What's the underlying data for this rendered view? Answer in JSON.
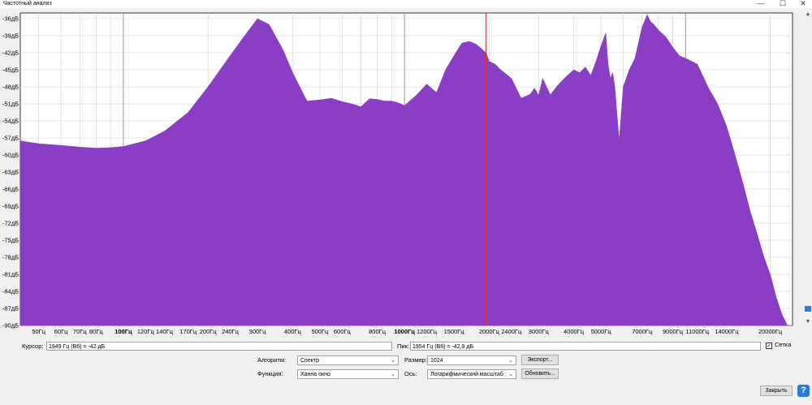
{
  "window": {
    "title": "Частотный анализ",
    "minimize": "—",
    "maximize": "☐",
    "close": "✕"
  },
  "plot": {
    "y_labels": [
      "-36дБ",
      "-39дБ",
      "-42дБ",
      "-45дБ",
      "-48дБ",
      "-51дБ",
      "-54дБ",
      "-57дБ",
      "-60дБ",
      "-63дБ",
      "-66дБ",
      "-69дБ",
      "-72дБ",
      "-75дБ",
      "-78дБ",
      "-81дБ",
      "-84дБ",
      "-87дБ",
      "-90дБ"
    ],
    "x_labels": [
      {
        "t": "50Гц",
        "b": false
      },
      {
        "t": "60Гц",
        "b": false
      },
      {
        "t": "70Гц",
        "b": false
      },
      {
        "t": "80Гц",
        "b": false
      },
      {
        "t": "100Гц",
        "b": true
      },
      {
        "t": "120Гц",
        "b": false
      },
      {
        "t": "140Гц",
        "b": false
      },
      {
        "t": "170Гц",
        "b": false
      },
      {
        "t": "200Гц",
        "b": false
      },
      {
        "t": "240Гц",
        "b": false
      },
      {
        "t": "300Гц",
        "b": false
      },
      {
        "t": "400Гц",
        "b": false
      },
      {
        "t": "500Гц",
        "b": false
      },
      {
        "t": "600Гц",
        "b": false
      },
      {
        "t": "800Гц",
        "b": false
      },
      {
        "t": "1000Гц",
        "b": true
      },
      {
        "t": "1200Гц",
        "b": false
      },
      {
        "t": "1500Гц",
        "b": false
      },
      {
        "t": "2000Гц",
        "b": false
      },
      {
        "t": "2400Гц",
        "b": false
      },
      {
        "t": "3000Гц",
        "b": false
      },
      {
        "t": "4000Гц",
        "b": false
      },
      {
        "t": "5000Гц",
        "b": false
      },
      {
        "t": "7000Гц",
        "b": false
      },
      {
        "t": "9000Гц",
        "b": false
      },
      {
        "t": "11000Гц",
        "b": false
      },
      {
        "t": "14000Гц",
        "b": false
      },
      {
        "t": "20000Гц",
        "b": false
      }
    ],
    "fill_color": "#8a3ec5",
    "cursor_color": "#d83a3a"
  },
  "chart_data": {
    "type": "area",
    "xlabel": "",
    "ylabel": "",
    "x_scale": "log",
    "xlim": [
      43,
      24000
    ],
    "ylim": [
      -90,
      -35
    ],
    "grid": true,
    "x": [
      43,
      50,
      60,
      70,
      80,
      90,
      100,
      120,
      140,
      170,
      200,
      240,
      270,
      300,
      330,
      370,
      400,
      450,
      500,
      550,
      600,
      650,
      700,
      750,
      800,
      850,
      900,
      950,
      1000,
      1100,
      1200,
      1300,
      1400,
      1500,
      1600,
      1700,
      1800,
      1900,
      1950,
      2000,
      2100,
      2200,
      2400,
      2600,
      2800,
      2900,
      3000,
      3100,
      3300,
      3500,
      3700,
      4000,
      4200,
      4400,
      4600,
      4800,
      5000,
      5200,
      5300,
      5400,
      5500,
      5600,
      5800,
      6000,
      6300,
      6600,
      7000,
      7300,
      7500,
      7700,
      8000,
      8500,
      9000,
      9500,
      10000,
      10500,
      11000,
      11500,
      12000,
      13000,
      14000,
      15000,
      16000,
      17000,
      18000,
      19000,
      20000,
      21000,
      22000,
      22500,
      23000,
      24000
    ],
    "y": [
      -57.5,
      -58,
      -58.3,
      -58.6,
      -58.8,
      -58.7,
      -58.5,
      -57.5,
      -55.8,
      -52.5,
      -48,
      -42.5,
      -39,
      -36,
      -37,
      -41.5,
      -45.5,
      -50.5,
      -50.3,
      -50,
      -50.6,
      -51,
      -51.5,
      -50.1,
      -50.2,
      -50.5,
      -50.5,
      -50.8,
      -51.3,
      -49.5,
      -47.5,
      -49,
      -45,
      -42.5,
      -40.3,
      -40,
      -40.5,
      -41.5,
      -42,
      -43.5,
      -44,
      -45,
      -46.5,
      -50,
      -49.3,
      -48.2,
      -49.5,
      -46.5,
      -49.4,
      -47.8,
      -46.5,
      -45,
      -45.5,
      -44.5,
      -46,
      -43.5,
      -40.8,
      -38.5,
      -44,
      -46.5,
      -45.5,
      -48,
      -57.5,
      -48,
      -45,
      -43,
      -37.5,
      -35.3,
      -36.5,
      -37,
      -38,
      -39.2,
      -41,
      -42.5,
      -43,
      -43.5,
      -44,
      -46,
      -48,
      -51,
      -55,
      -60,
      -65,
      -70,
      -74,
      -78,
      -81,
      -85,
      -88,
      -89,
      -90,
      -90
    ]
  },
  "controls": {
    "cursor_label": "Курсор:",
    "cursor_value": "1949 Гц (В6) = -42 дБ",
    "peak_label": "Пик:",
    "peak_value": "1954 Гц (В6) = -42,9 дБ",
    "grid_label": "Сетка",
    "grid_checked": "✓",
    "algorithm_label": "Алгоритм:",
    "algorithm_value": "Спектр",
    "size_label": "Размер:",
    "size_value": "1024",
    "export_label": "Экспорт...",
    "function_label": "Функция:",
    "function_value": "Ханна окно",
    "axis_label": "Ось:",
    "axis_value": "Логарифмический масштаб",
    "refresh_label": "Обновить...",
    "close_label": "Закрыть",
    "help_label": "?"
  }
}
